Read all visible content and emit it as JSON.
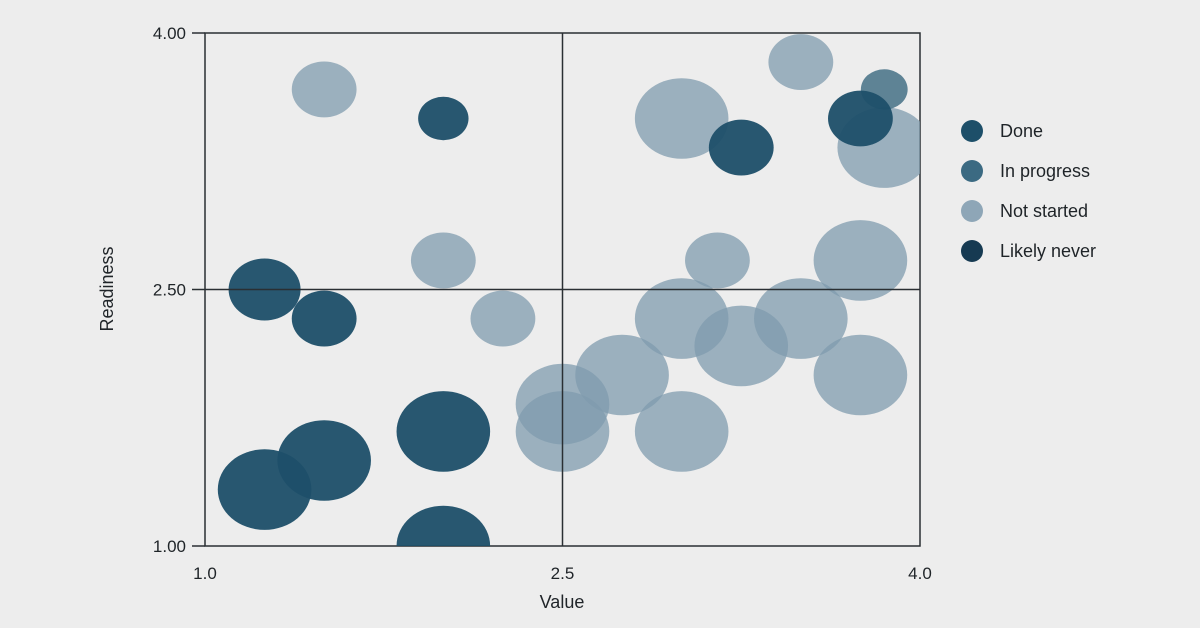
{
  "chart_data": {
    "type": "scatter",
    "title": "",
    "xlabel": "Value",
    "ylabel": "Readiness",
    "xlim": [
      1.0,
      4.0
    ],
    "ylim": [
      1.0,
      4.0
    ],
    "x_ticks": [
      "1.0",
      "2.5",
      "4.0"
    ],
    "y_ticks": [
      "1.00",
      "2.50",
      "4.00"
    ],
    "x_tick_values": [
      1.0,
      2.5,
      4.0
    ],
    "y_tick_values": [
      1.0,
      2.5,
      4.0
    ],
    "grid": "quadrant lines at x=2.5 and y=2.5",
    "legend_position": "right",
    "series": [
      {
        "name": "Done",
        "color": "#1d4f69",
        "opacity": 0.95,
        "points": [
          {
            "x": 1.25,
            "y": 2.5,
            "size": 1.0
          },
          {
            "x": 1.5,
            "y": 2.33,
            "size": 0.9
          },
          {
            "x": 2.0,
            "y": 3.5,
            "size": 0.7
          },
          {
            "x": 2.0,
            "y": 1.67,
            "size": 1.3
          },
          {
            "x": 1.5,
            "y": 1.5,
            "size": 1.3
          },
          {
            "x": 1.25,
            "y": 1.33,
            "size": 1.3
          },
          {
            "x": 2.0,
            "y": 1.0,
            "size": 1.3
          },
          {
            "x": 3.75,
            "y": 3.5,
            "size": 0.9
          },
          {
            "x": 3.25,
            "y": 3.33,
            "size": 0.9
          }
        ]
      },
      {
        "name": "In progress",
        "color": "#2e5f77",
        "opacity": 0.75,
        "points": [
          {
            "x": 3.85,
            "y": 3.67,
            "size": 0.65
          }
        ]
      },
      {
        "name": "Not started",
        "color": "#7f9bae",
        "opacity": 0.75,
        "points": [
          {
            "x": 1.5,
            "y": 3.67,
            "size": 0.9
          },
          {
            "x": 2.0,
            "y": 2.67,
            "size": 0.9
          },
          {
            "x": 2.25,
            "y": 2.33,
            "size": 0.9
          },
          {
            "x": 2.5,
            "y": 1.83,
            "size": 1.3
          },
          {
            "x": 2.5,
            "y": 1.67,
            "size": 1.3
          },
          {
            "x": 2.75,
            "y": 2.0,
            "size": 1.3
          },
          {
            "x": 3.0,
            "y": 1.67,
            "size": 1.3
          },
          {
            "x": 3.0,
            "y": 2.33,
            "size": 1.3
          },
          {
            "x": 3.0,
            "y": 3.5,
            "size": 1.3
          },
          {
            "x": 3.15,
            "y": 2.67,
            "size": 0.9
          },
          {
            "x": 3.25,
            "y": 2.17,
            "size": 1.3
          },
          {
            "x": 3.5,
            "y": 3.83,
            "size": 0.9
          },
          {
            "x": 3.5,
            "y": 2.33,
            "size": 1.3
          },
          {
            "x": 3.75,
            "y": 2.67,
            "size": 1.3
          },
          {
            "x": 3.75,
            "y": 2.0,
            "size": 1.3
          },
          {
            "x": 3.85,
            "y": 3.33,
            "size": 1.3
          }
        ]
      },
      {
        "name": "Likely never",
        "color": "#163a52",
        "opacity": 1.0,
        "points": []
      }
    ]
  }
}
